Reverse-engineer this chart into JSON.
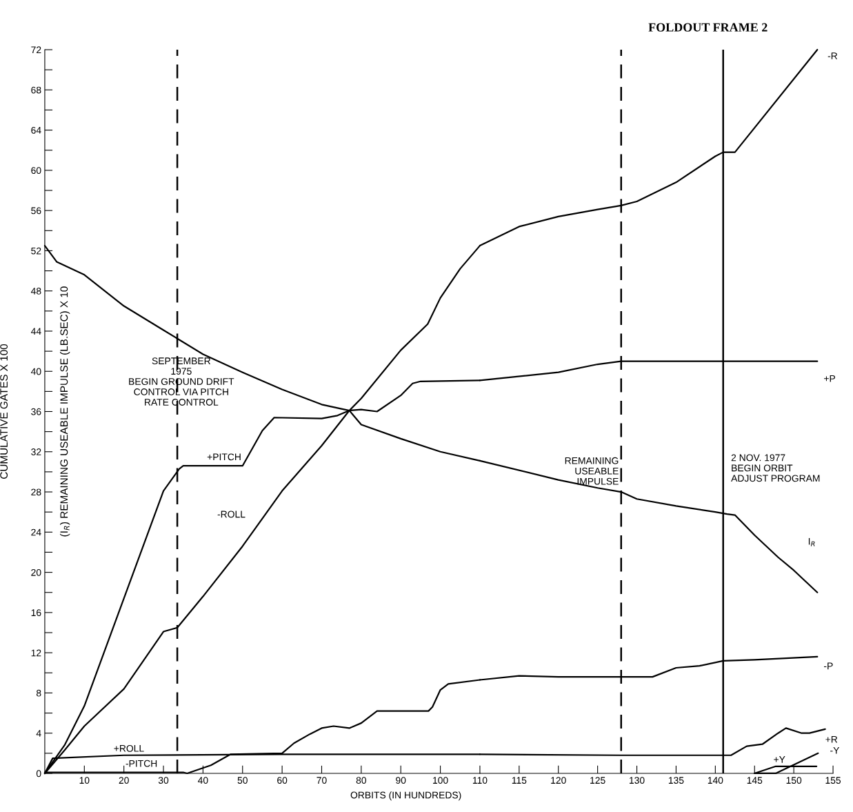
{
  "chart_data": [
    {
      "type": "line",
      "xlabel": "ORBITS (IN HUNDREDS)",
      "ylabel": "CUMULATIVE GATES X 100",
      "y2label": "(I$_{R}$) REMAINING USEABLE IMPULSE (LB.SEC) X 10",
      "xlim": [
        0,
        110
      ],
      "xticks": [
        10,
        20,
        30,
        40,
        50,
        60,
        70,
        80,
        90,
        100,
        110
      ],
      "ylim": [
        0,
        72
      ],
      "yticks": [
        0,
        {
          "value": 2,
          "label": null
        },
        4,
        {
          "value": 6,
          "label": null
        },
        8,
        {
          "value": 10,
          "label": null
        },
        12,
        {
          "value": 14,
          "label": null
        },
        16,
        {
          "value": 18,
          "label": null
        },
        20,
        {
          "value": 22,
          "label": null
        },
        24,
        {
          "value": 26,
          "label": null
        },
        28,
        {
          "value": 30,
          "label": null
        },
        32,
        {
          "value": 34,
          "label": null
        },
        36,
        {
          "value": 38,
          "label": null
        },
        40,
        {
          "value": 42,
          "label": null
        },
        44,
        {
          "value": 46,
          "label": null
        },
        48,
        {
          "value": 50,
          "label": null
        },
        52,
        {
          "value": 54,
          "label": null
        },
        56,
        {
          "value": 58,
          "label": null
        },
        60,
        {
          "value": 62,
          "label": null
        },
        64,
        {
          "value": 66,
          "label": null
        },
        68,
        {
          "value": 70,
          "label": null
        },
        72
      ],
      "grid": false,
      "marker": "none",
      "line_style": "solid",
      "series": [
        {
          "color": "#000000",
          "x": [
            0,
            3,
            10,
            20,
            30,
            40,
            50,
            60,
            70,
            77,
            80,
            90,
            100,
            110
          ],
          "values": [
            52.5,
            50.9,
            49.6,
            46.5,
            44.1,
            41.7,
            39.9,
            38.2,
            36.7,
            36.1,
            34.7,
            33.3,
            32.0,
            31.1
          ]
        },
        {
          "color": "#000000",
          "x": [
            0,
            5,
            10,
            20,
            30,
            33.5,
            40,
            50,
            60,
            70,
            77,
            80,
            90,
            96.8,
            100,
            105,
            110
          ],
          "values": [
            0,
            2.3,
            4.7,
            8.4,
            14.1,
            14.5,
            17.6,
            22.6,
            28.1,
            32.6,
            36.1,
            37.3,
            42.1,
            44.7,
            47.3,
            50.2,
            52.5
          ]
        },
        {
          "color": "#000000",
          "x": [
            0,
            5,
            10,
            20,
            30,
            34,
            35,
            50,
            55,
            58,
            70,
            74,
            77,
            80,
            84,
            90,
            93,
            95,
            110
          ],
          "values": [
            0,
            2.8,
            6.7,
            17.4,
            28.1,
            30.3,
            30.6,
            30.6,
            34.1,
            35.4,
            35.3,
            35.6,
            36.1,
            36.2,
            36.0,
            37.6,
            38.8,
            39.0,
            39.1
          ]
        },
        {
          "color": "#000000",
          "x": [
            0,
            35,
            36,
            42,
            47,
            60,
            63,
            67,
            70,
            73,
            77,
            80,
            84,
            97,
            98,
            100,
            102,
            110
          ],
          "values": [
            0.1,
            0.1,
            0,
            0.8,
            1.9,
            2.0,
            3.0,
            3.9,
            4.5,
            4.7,
            4.5,
            5.0,
            6.2,
            6.2,
            6.6,
            8.3,
            8.9,
            9.3
          ]
        },
        {
          "color": "#000000",
          "x": [
            0,
            2,
            20,
            60,
            110
          ],
          "values": [
            0,
            1.5,
            1.8,
            1.9,
            1.9
          ]
        }
      ],
      "ref_lines": [
        {
          "axis": "x",
          "value": 33.5,
          "color": "#000000",
          "line_style": "dashed"
        }
      ],
      "annotations": [
        "+PITCH",
        "-ROLL",
        "+ROLL",
        "-PITCH",
        "SEPTEMBER\n1975\nBEGIN GROUND DRIFT\nCONTROL VIA PITCH\nRATE CONTROL"
      ]
    },
    {
      "type": "line",
      "xlim": [
        110,
        155
      ],
      "xticks": [
        115,
        120,
        125,
        130,
        135,
        140,
        145,
        150,
        155
      ],
      "ylim": [
        0,
        72
      ],
      "tick_labels": "x",
      "grid": false,
      "marker": "none",
      "line_style": "solid",
      "series": [
        {
          "color": "#000000",
          "x": [
            110,
            120,
            125,
            128,
            130,
            135,
            140,
            141.5,
            142.5,
            145,
            148,
            150,
            153
          ],
          "values": [
            31.1,
            29.2,
            28.4,
            28.0,
            27.3,
            26.6,
            26.0,
            25.8,
            25.7,
            23.7,
            21.5,
            20.2,
            18.0
          ]
        },
        {
          "color": "#000000",
          "x": [
            110,
            115,
            120,
            125,
            128,
            130,
            135,
            140,
            141,
            142.5,
            153
          ],
          "values": [
            52.5,
            54.4,
            55.4,
            56.1,
            56.5,
            56.9,
            58.8,
            61.4,
            61.8,
            61.8,
            72
          ]
        },
        {
          "color": "#000000",
          "x": [
            110,
            120,
            125,
            128,
            153
          ],
          "values": [
            39.1,
            39.9,
            40.7,
            41.0,
            41.0
          ]
        },
        {
          "color": "#000000",
          "x": [
            110,
            115,
            120,
            130,
            132,
            135,
            138,
            141,
            145,
            153
          ],
          "values": [
            9.3,
            9.7,
            9.6,
            9.6,
            9.6,
            10.5,
            10.7,
            11.2,
            11.3,
            11.6
          ]
        },
        {
          "color": "#000000",
          "x": [
            110,
            128,
            142,
            144,
            146,
            148,
            149,
            151,
            152,
            154
          ],
          "values": [
            1.9,
            1.8,
            1.8,
            2.7,
            2.9,
            4.0,
            4.5,
            4.0,
            4.0,
            4.4
          ]
        },
        {
          "color": "#000000",
          "x": [
            145,
            147.7,
            152.9
          ],
          "values": [
            0,
            0.7,
            0.7
          ]
        },
        {
          "color": "#000000",
          "x": [
            145,
            147.7,
            153.1
          ],
          "values": [
            0,
            0,
            2.0
          ]
        }
      ],
      "ref_lines": [
        {
          "axis": "x",
          "value": 128,
          "color": "#000000",
          "line_style": "dashed"
        },
        {
          "axis": "x",
          "value": 141,
          "color": "#000000",
          "line_style": "solid"
        }
      ],
      "annotations": [
        "-R",
        "+P",
        "-P",
        "+R",
        "I$_{R}$",
        "+Y",
        "-Y",
        "REMAINING\nUSEABLE\nIMPULSE",
        "2 NOV. 1977\nBEGIN ORBIT\nADJUST PROGRAM",
        "FOLDOUT FRAME 2"
      ]
    }
  ]
}
